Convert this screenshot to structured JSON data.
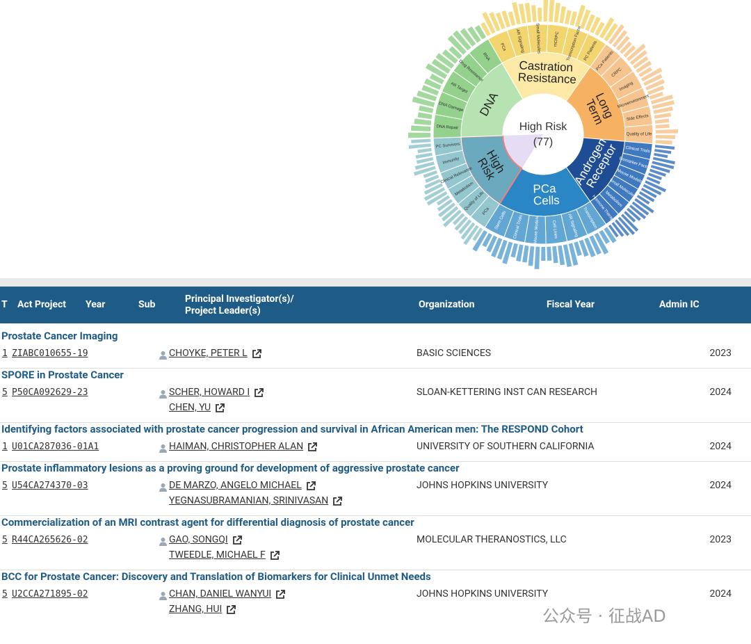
{
  "sunburst": {
    "center": {
      "label": "High Risk",
      "count": "(77)"
    },
    "segments": [
      {
        "label": "Castration Resistance",
        "color": "#fde9a6",
        "child_color": "#f2d56f",
        "children": [
          "PCa",
          "AR Signaling",
          "Small Molecules",
          "mCRPC",
          "Transcription Factor",
          "PC Patients"
        ]
      },
      {
        "label": "Long Term",
        "color": "#f6b262",
        "child_color": "#f6c58f",
        "children": [
          "PCa Patients",
          "CRPC",
          "Imaging",
          "Microenvironment",
          "Side Effects",
          "Quality of Life"
        ]
      },
      {
        "label": "Androgen Receptor",
        "color": "#1f4d95",
        "child_color": "#3f79c0",
        "children": [
          "Clinical Trials",
          "Biomarker Factor",
          "Mouse Models",
          "Small Molecules",
          "Metabolism",
          "Hormone Therapy"
        ]
      },
      {
        "label": "PCa Cells",
        "color": "#2a86c5",
        "child_color": "#62a6d3",
        "children": [
          "Transcription",
          "AR Signaling",
          "Cell Lines",
          "Mouse Models",
          "Clinical Trials",
          "Stem Cells"
        ]
      },
      {
        "label": "High Risk",
        "color": "#6aa9be",
        "child_color": "#93c6ce",
        "children": [
          "PCa",
          "Quality of Life",
          "Metabolism",
          "Clinical Relevance",
          "Immunity",
          "PC Survivors"
        ]
      },
      {
        "label": "DNA",
        "color": "#b6e3b1",
        "child_color": "#93d18d",
        "children": [
          "DNA Repair",
          "DNA Damage",
          "AR Target",
          "Drug Resistance",
          "RNA"
        ]
      }
    ]
  },
  "table": {
    "headers": [
      "T",
      "Act Project",
      "Year",
      "Sub",
      "Principal Investigator(s)/ Project Leader(s)",
      "Organization",
      "Fiscal Year",
      "Admin IC"
    ],
    "rows": [
      {
        "title": "Prostate Cancer Imaging",
        "type": "1",
        "project": "ZIABC010655-19",
        "pis": [
          "CHOYKE, PETER L"
        ],
        "organization": "BASIC SCIENCES",
        "year": "2023"
      },
      {
        "title": "SPORE in Prostate Cancer",
        "type": "5",
        "project": "P50CA092629-23",
        "pis": [
          "SCHER, HOWARD I",
          "CHEN, YU"
        ],
        "organization": "SLOAN-KETTERING INST CAN RESEARCH",
        "year": "2024"
      },
      {
        "title": "Identifying factors associated with prostate cancer progression and survival in African American men: The RESPOND Cohort",
        "type": "1",
        "project": "U01CA287036-01A1",
        "pis": [
          "HAIMAN, CHRISTOPHER ALAN"
        ],
        "organization": "UNIVERSITY OF SOUTHERN CALIFORNIA",
        "year": "2024"
      },
      {
        "title": "Prostate inflammatory lesions as a proving ground for development of aggressive prostate cancer",
        "type": "5",
        "project": "U54CA274370-03",
        "pis": [
          "DE MARZO, ANGELO MICHAEL",
          "YEGNASUBRAMANIAN, SRINIVASAN"
        ],
        "organization": "JOHNS HOPKINS UNIVERSITY",
        "year": "2024"
      },
      {
        "title": "Commercialization of an MRI contrast agent for differential diagnosis of prostate cancer",
        "type": "5",
        "project": "R44CA265626-02",
        "pis": [
          "GAO, SONGQI",
          "TWEEDLE, MICHAEL F"
        ],
        "organization": "MOLECULAR THERANOSTICS, LLC",
        "year": "2023"
      },
      {
        "title": "BCC for Prostate Cancer: Discovery and Translation of Biomarkers for Clinical Unmet Needs",
        "type": "5",
        "project": "U2CCA271895-02",
        "pis": [
          "CHAN, DANIEL WANYUI",
          "ZHANG, HUI"
        ],
        "organization": "JOHNS HOPKINS UNIVERSITY",
        "year": "2024"
      }
    ]
  },
  "watermark": "公众号 · 征战AD"
}
